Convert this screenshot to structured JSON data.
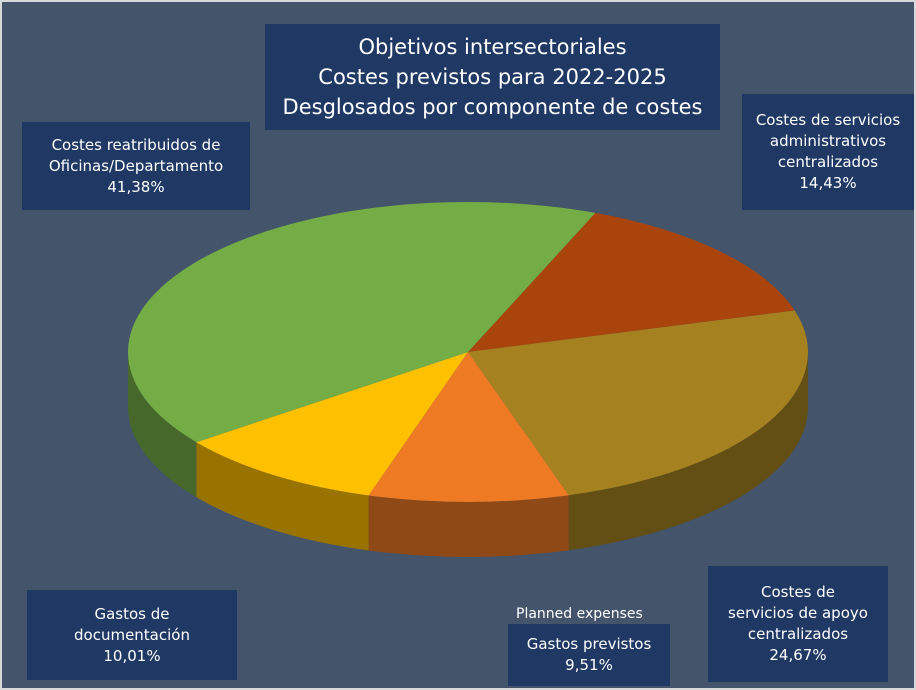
{
  "chart_data": {
    "type": "pie",
    "title": [
      "Objetivos intersectoriales",
      "Costes previstos para 2022-2025",
      "Desglosados por componente de costes"
    ],
    "categories": [
      "Costes de servicios administrativos centralizados",
      "Costes de servicios de apoyo centralizados",
      "Gastos previstos",
      "Gastos de documentación",
      "Costes reatribuidos de Oficinas/Departamento"
    ],
    "values": [
      14.43,
      24.67,
      9.51,
      10.01,
      41.38
    ],
    "value_labels": [
      "14,43%",
      "24,67%",
      "9,51%",
      "10,01%",
      "41,38%"
    ],
    "colors": [
      "#a9440c",
      "#a5821f",
      "#ee7a24",
      "#ffc000",
      "#74ad46"
    ],
    "annotations": [
      "Planned expenses"
    ]
  }
}
